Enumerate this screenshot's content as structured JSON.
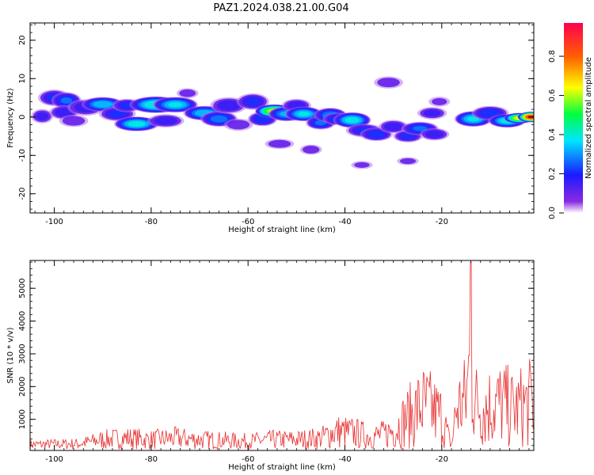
{
  "title": "PAZ1.2024.038.21.00.G04",
  "chart_data": [
    {
      "type": "heatmap",
      "xlabel": "Height of straight line (km)",
      "ylabel": "Frequency (Hz)",
      "xlim": [
        -105,
        -1
      ],
      "ylim": [
        -25,
        24.5
      ],
      "xticks": [
        -100,
        -80,
        -60,
        -40,
        -20
      ],
      "yticks": [
        -20,
        -10,
        0,
        10,
        20
      ],
      "colorbar": {
        "label": "Normalized spectral amplitude",
        "range": [
          0,
          0.97
        ],
        "ticks": [
          0.0,
          0.2,
          0.4,
          0.6,
          0.8
        ]
      },
      "blobs": [
        {
          "x": -102.5,
          "y": 0.2,
          "w": 1.5,
          "h": 1.4,
          "v": 0.18
        },
        {
          "x": -100.0,
          "y": 5.0,
          "w": 2.2,
          "h": 1.6,
          "v": 0.22
        },
        {
          "x": -97.5,
          "y": 4.3,
          "w": 2.0,
          "h": 1.6,
          "v": 0.28
        },
        {
          "x": -98.0,
          "y": 1.2,
          "w": 2.0,
          "h": 1.4,
          "v": 0.2
        },
        {
          "x": -96.0,
          "y": -1.0,
          "w": 2.0,
          "h": 1.2,
          "v": 0.15
        },
        {
          "x": -93.5,
          "y": 2.5,
          "w": 2.5,
          "h": 1.6,
          "v": 0.2
        },
        {
          "x": -90.0,
          "y": 3.3,
          "w": 2.8,
          "h": 1.4,
          "v": 0.38
        },
        {
          "x": -87.0,
          "y": 0.8,
          "w": 2.5,
          "h": 1.4,
          "v": 0.22
        },
        {
          "x": -85.0,
          "y": 3.0,
          "w": 2.0,
          "h": 1.3,
          "v": 0.22
        },
        {
          "x": -83.0,
          "y": -1.8,
          "w": 3.0,
          "h": 1.4,
          "v": 0.42
        },
        {
          "x": -79.0,
          "y": 3.2,
          "w": 3.5,
          "h": 1.6,
          "v": 0.45
        },
        {
          "x": -75.0,
          "y": 3.2,
          "w": 3.0,
          "h": 1.5,
          "v": 0.4
        },
        {
          "x": -77.0,
          "y": -1.0,
          "w": 2.5,
          "h": 1.3,
          "v": 0.2
        },
        {
          "x": -72.5,
          "y": 6.2,
          "w": 1.5,
          "h": 1.0,
          "v": 0.14
        },
        {
          "x": -69.0,
          "y": 1.0,
          "w": 2.8,
          "h": 1.4,
          "v": 0.38
        },
        {
          "x": -66.0,
          "y": -0.5,
          "w": 2.5,
          "h": 1.5,
          "v": 0.3
        },
        {
          "x": -64.0,
          "y": 3.0,
          "w": 2.5,
          "h": 1.6,
          "v": 0.2
        },
        {
          "x": -62.0,
          "y": -2.0,
          "w": 2.0,
          "h": 1.2,
          "v": 0.15
        },
        {
          "x": -59.0,
          "y": 4.0,
          "w": 2.2,
          "h": 1.6,
          "v": 0.22
        },
        {
          "x": -57.0,
          "y": -0.5,
          "w": 2.0,
          "h": 1.4,
          "v": 0.25
        },
        {
          "x": -54.5,
          "y": 1.5,
          "w": 2.6,
          "h": 1.3,
          "v": 0.66
        },
        {
          "x": -52.0,
          "y": 0.8,
          "w": 2.5,
          "h": 1.4,
          "v": 0.35
        },
        {
          "x": -50.0,
          "y": 3.0,
          "w": 2.0,
          "h": 1.3,
          "v": 0.2
        },
        {
          "x": -48.5,
          "y": 0.8,
          "w": 2.5,
          "h": 1.4,
          "v": 0.4
        },
        {
          "x": -45.0,
          "y": -1.5,
          "w": 2.0,
          "h": 1.3,
          "v": 0.28
        },
        {
          "x": -43.0,
          "y": 0.5,
          "w": 2.2,
          "h": 1.4,
          "v": 0.32
        },
        {
          "x": -41.5,
          "y": -0.5,
          "w": 2.0,
          "h": 1.2,
          "v": 0.25
        },
        {
          "x": -38.5,
          "y": -0.8,
          "w": 2.5,
          "h": 1.5,
          "v": 0.42
        },
        {
          "x": -36.0,
          "y": -3.5,
          "w": 2.5,
          "h": 1.3,
          "v": 0.22
        },
        {
          "x": -53.5,
          "y": -7.0,
          "w": 2.0,
          "h": 1.0,
          "v": 0.15
        },
        {
          "x": -47.0,
          "y": -8.5,
          "w": 1.5,
          "h": 1.0,
          "v": 0.15
        },
        {
          "x": -33.5,
          "y": -4.5,
          "w": 2.2,
          "h": 1.3,
          "v": 0.25
        },
        {
          "x": -30.0,
          "y": -2.5,
          "w": 2.0,
          "h": 1.3,
          "v": 0.2
        },
        {
          "x": -31.0,
          "y": 9.0,
          "w": 2.0,
          "h": 1.2,
          "v": 0.15
        },
        {
          "x": -36.5,
          "y": -12.5,
          "w": 1.5,
          "h": 0.8,
          "v": 0.12
        },
        {
          "x": -27.0,
          "y": -5.0,
          "w": 2.0,
          "h": 1.2,
          "v": 0.22
        },
        {
          "x": -24.5,
          "y": -3.0,
          "w": 2.5,
          "h": 1.3,
          "v": 0.28
        },
        {
          "x": -21.5,
          "y": -4.5,
          "w": 2.0,
          "h": 1.2,
          "v": 0.2
        },
        {
          "x": -27.0,
          "y": -11.5,
          "w": 1.5,
          "h": 0.8,
          "v": 0.13
        },
        {
          "x": -22.0,
          "y": 1.0,
          "w": 2.0,
          "h": 1.2,
          "v": 0.18
        },
        {
          "x": -20.5,
          "y": 4.0,
          "w": 1.5,
          "h": 1.0,
          "v": 0.12
        },
        {
          "x": -13.5,
          "y": -0.5,
          "w": 2.5,
          "h": 1.5,
          "v": 0.4
        },
        {
          "x": -10.0,
          "y": 1.0,
          "w": 2.5,
          "h": 1.4,
          "v": 0.25
        },
        {
          "x": -6.5,
          "y": -1.0,
          "w": 2.5,
          "h": 1.3,
          "v": 0.42
        },
        {
          "x": -4.0,
          "y": -0.3,
          "w": 2.0,
          "h": 1.0,
          "v": 0.68
        },
        {
          "x": -1.5,
          "y": 0.0,
          "w": 1.8,
          "h": 1.0,
          "v": 0.95
        }
      ]
    },
    {
      "type": "line",
      "xlabel": "Height of straight line (km)",
      "ylabel": "SNR (10 * v/v)",
      "xlim": [
        -105,
        -1
      ],
      "ylim": [
        50,
        5850
      ],
      "xticks": [
        -100,
        -80,
        -60,
        -40,
        -20
      ],
      "yticks": [
        1000,
        2000,
        3000,
        4000,
        5000
      ],
      "series": [
        {
          "color": "#e83030",
          "envelope": [
            [
              -105,
              300
            ],
            [
              -95,
              350
            ],
            [
              -90,
              600
            ],
            [
              -85,
              700
            ],
            [
              -80,
              600
            ],
            [
              -75,
              700
            ],
            [
              -70,
              600
            ],
            [
              -65,
              550
            ],
            [
              -60,
              500
            ],
            [
              -55,
              600
            ],
            [
              -50,
              600
            ],
            [
              -45,
              700
            ],
            [
              -42,
              1100
            ],
            [
              -38,
              1000
            ],
            [
              -35,
              800
            ],
            [
              -32,
              900
            ],
            [
              -30,
              1200
            ],
            [
              -28,
              1700
            ],
            [
              -26,
              2200
            ],
            [
              -24,
              2700
            ],
            [
              -22,
              2400
            ],
            [
              -20,
              2000
            ],
            [
              -18,
              200
            ],
            [
              -17,
              2500
            ],
            [
              -15,
              3000
            ],
            [
              -14,
              5800
            ],
            [
              -13,
              2800
            ],
            [
              -11,
              2600
            ],
            [
              -9,
              2800
            ],
            [
              -7,
              2700
            ],
            [
              -5,
              2400
            ],
            [
              -3,
              2700
            ],
            [
              -1,
              2900
            ]
          ]
        }
      ]
    }
  ]
}
